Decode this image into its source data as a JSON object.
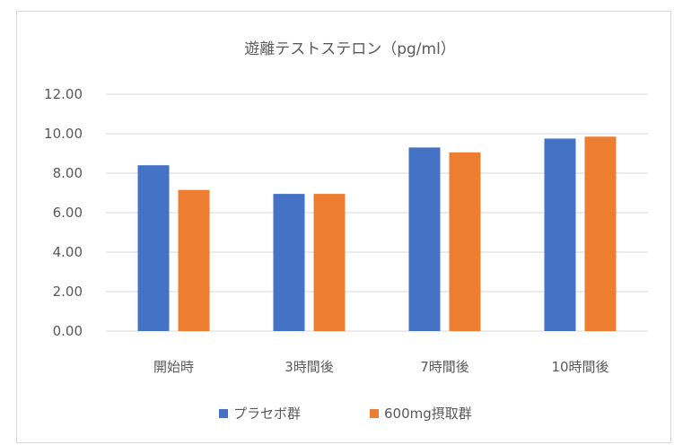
{
  "chart_data": {
    "type": "bar",
    "title": "遊離テストステロン（pg/ml）",
    "categories": [
      "開始時",
      "3時間後",
      "7時間後",
      "10時間後"
    ],
    "series": [
      {
        "name": "プラセボ群",
        "color": "#4472c4",
        "values": [
          8.4,
          6.95,
          9.3,
          9.75
        ]
      },
      {
        "name": "600mg摂取群",
        "color": "#ed7d31",
        "values": [
          7.15,
          6.95,
          9.05,
          9.85
        ]
      }
    ],
    "ylim": [
      0,
      12
    ],
    "yticks": [
      "0.00",
      "2.00",
      "4.00",
      "6.00",
      "8.00",
      "10.00",
      "12.00"
    ],
    "grid": true,
    "legend_position": "bottom"
  }
}
